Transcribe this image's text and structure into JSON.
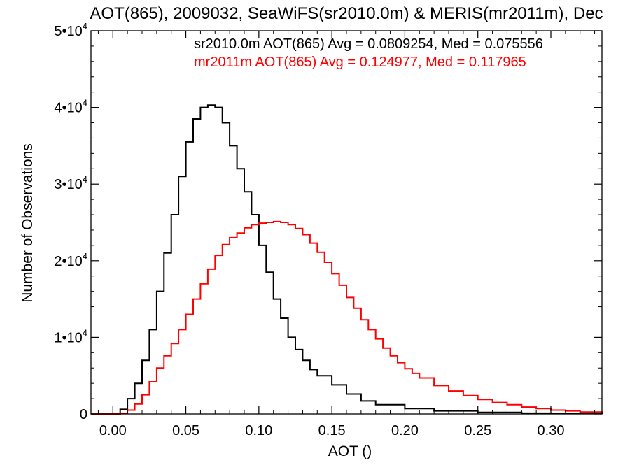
{
  "chart_data": {
    "type": "line",
    "title": "AOT(865), 2009032, SeaWiFS(sr2010.0m) & MERIS(mr2011m), Dec",
    "xlabel": "AOT ()",
    "ylabel": "Number of Observations",
    "xlim": [
      -0.015,
      0.335
    ],
    "ylim": [
      0,
      50000
    ],
    "x_ticks": [
      0.0,
      0.05,
      0.1,
      0.15,
      0.2,
      0.25,
      0.3
    ],
    "x_tick_labels": [
      "0.00",
      "0.05",
      "0.10",
      "0.15",
      "0.20",
      "0.25",
      "0.30"
    ],
    "y_ticks": [
      {
        "value": 0,
        "mantissa": "0",
        "exponent": ""
      },
      {
        "value": 10000,
        "mantissa": "1•10",
        "exponent": "4"
      },
      {
        "value": 20000,
        "mantissa": "2•10",
        "exponent": "4"
      },
      {
        "value": 30000,
        "mantissa": "3•10",
        "exponent": "4"
      },
      {
        "value": 40000,
        "mantissa": "4•10",
        "exponent": "4"
      },
      {
        "value": 50000,
        "mantissa": "5•10",
        "exponent": "4"
      }
    ],
    "grid": false,
    "annotations": [
      {
        "text": "sr2010.0m AOT(865) Avg = 0.0809254, Med = 0.075556",
        "color": "#000000"
      },
      {
        "text": "mr2011m AOT(865) Avg = 0.124977, Med = 0.117965",
        "color": "#ff0000"
      }
    ],
    "series": [
      {
        "name": "sr2010.0m",
        "color": "#000000",
        "step": true,
        "x": [
          -0.015,
          0.0,
          0.005,
          0.01,
          0.015,
          0.02,
          0.025,
          0.03,
          0.035,
          0.04,
          0.045,
          0.05,
          0.055,
          0.06,
          0.065,
          0.068,
          0.07,
          0.075,
          0.08,
          0.085,
          0.09,
          0.095,
          0.1,
          0.105,
          0.11,
          0.115,
          0.12,
          0.125,
          0.13,
          0.135,
          0.14,
          0.15,
          0.16,
          0.17,
          0.18,
          0.2,
          0.22,
          0.25,
          0.28,
          0.3,
          0.335
        ],
        "y": [
          0,
          0,
          600,
          2000,
          4000,
          7000,
          11000,
          16000,
          21000,
          26000,
          31000,
          35500,
          38500,
          40000,
          40300,
          40300,
          40000,
          38000,
          35000,
          32000,
          29000,
          26000,
          22000,
          18500,
          15000,
          12500,
          10000,
          8400,
          7000,
          5800,
          5000,
          3800,
          2600,
          1700,
          1200,
          700,
          400,
          200,
          100,
          50,
          0
        ]
      },
      {
        "name": "mr2011m",
        "color": "#ff0000",
        "step": true,
        "x": [
          -0.015,
          0.005,
          0.01,
          0.015,
          0.02,
          0.025,
          0.03,
          0.035,
          0.04,
          0.045,
          0.05,
          0.055,
          0.06,
          0.065,
          0.07,
          0.075,
          0.08,
          0.085,
          0.09,
          0.095,
          0.1,
          0.105,
          0.11,
          0.115,
          0.12,
          0.125,
          0.13,
          0.135,
          0.14,
          0.145,
          0.15,
          0.155,
          0.16,
          0.165,
          0.17,
          0.175,
          0.18,
          0.185,
          0.19,
          0.195,
          0.2,
          0.205,
          0.21,
          0.22,
          0.23,
          0.24,
          0.25,
          0.26,
          0.27,
          0.28,
          0.29,
          0.3,
          0.31,
          0.32,
          0.335
        ],
        "y": [
          0,
          100,
          500,
          1300,
          2500,
          4200,
          6000,
          7600,
          9200,
          11000,
          13000,
          15000,
          17000,
          18900,
          20700,
          22100,
          23000,
          23600,
          24300,
          24700,
          24900,
          25000,
          25100,
          25000,
          24700,
          24200,
          23400,
          22300,
          21100,
          19800,
          18300,
          16800,
          15200,
          13800,
          12300,
          11000,
          9800,
          8600,
          7600,
          6700,
          5900,
          5300,
          4700,
          3700,
          3000,
          2400,
          1900,
          1500,
          1200,
          900,
          700,
          500,
          400,
          250,
          100
        ]
      }
    ]
  }
}
